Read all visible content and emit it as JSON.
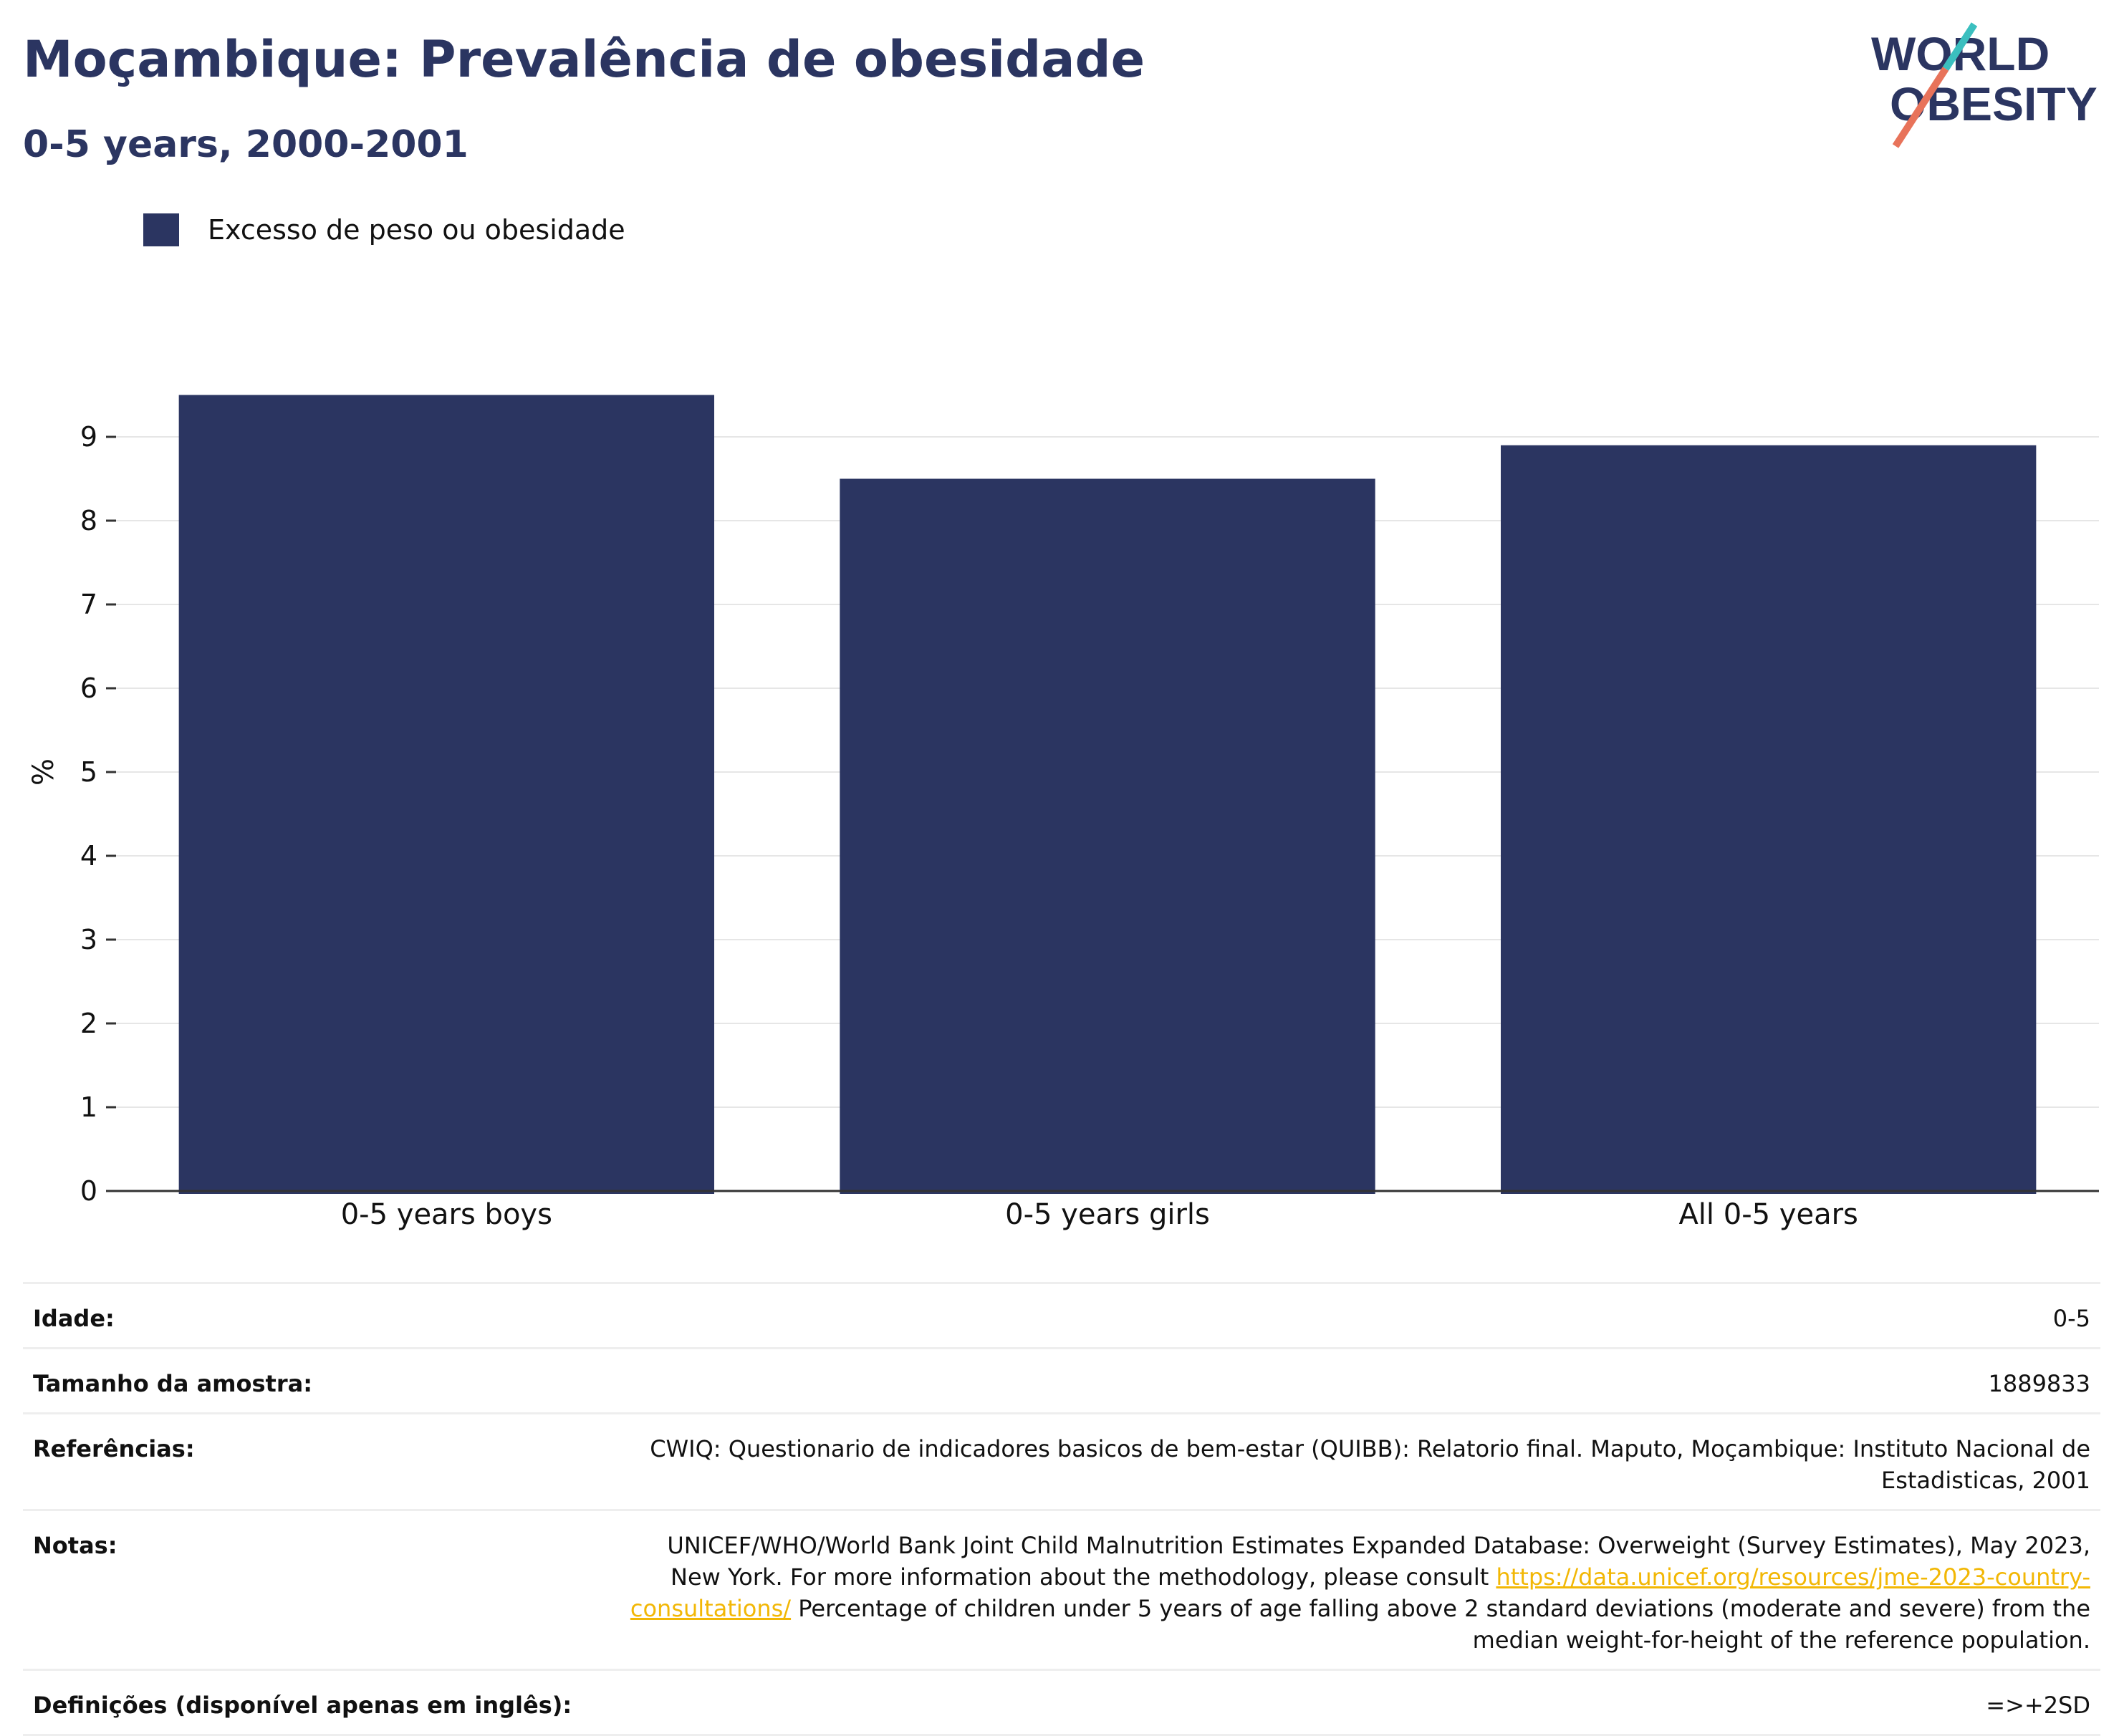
{
  "header": {
    "title": "Moçambique: Prevalência de obesidade",
    "subtitle": "0-5 years, 2000-2001"
  },
  "logo": {
    "line1": "WORLD",
    "line2": "OBESITY",
    "slash_color": "#e8735a",
    "accent_color": "#3bbfbf"
  },
  "legend": {
    "label": "Excesso de peso ou obesidade"
  },
  "chart_data": {
    "type": "bar",
    "categories": [
      "0-5 years boys",
      "0-5 years girls",
      "All 0-5 years"
    ],
    "series": [
      {
        "name": "Excesso de peso ou obesidade",
        "values": [
          9.5,
          8.5,
          8.9
        ],
        "color": "#2b3561"
      }
    ],
    "ylabel": "%",
    "xlabel": "",
    "ylim": [
      0,
      10
    ],
    "yticks": [
      0,
      1,
      2,
      3,
      4,
      5,
      6,
      7,
      8,
      9
    ],
    "grid": true
  },
  "info": {
    "age": {
      "label": "Idade:",
      "value": "0-5"
    },
    "sample": {
      "label": "Tamanho da amostra:",
      "value": "1889833"
    },
    "references": {
      "label": "Referências:",
      "value": "CWIQ: Questionario de indicadores basicos de bem-estar (QUIBB): Relatorio final. Maputo, Moçambique: Instituto Nacional de Estadisticas, 2001"
    },
    "notes": {
      "label": "Notas:",
      "text_before": "UNICEF/WHO/World Bank Joint Child Malnutrition Estimates Expanded Database: Overweight (Survey Estimates), May 2023, New York. For more information about the methodology, please consult ",
      "link": "https://data.unicef.org/resources/jme-2023-country-consultations/",
      "text_after": " Percentage of children under 5 years of age falling above 2 standard deviations (moderate and severe) from the median weight-for-height of the reference population."
    },
    "definitions": {
      "label": "Definições (disponível apenas em inglês):",
      "value": "=>+2SD"
    }
  }
}
